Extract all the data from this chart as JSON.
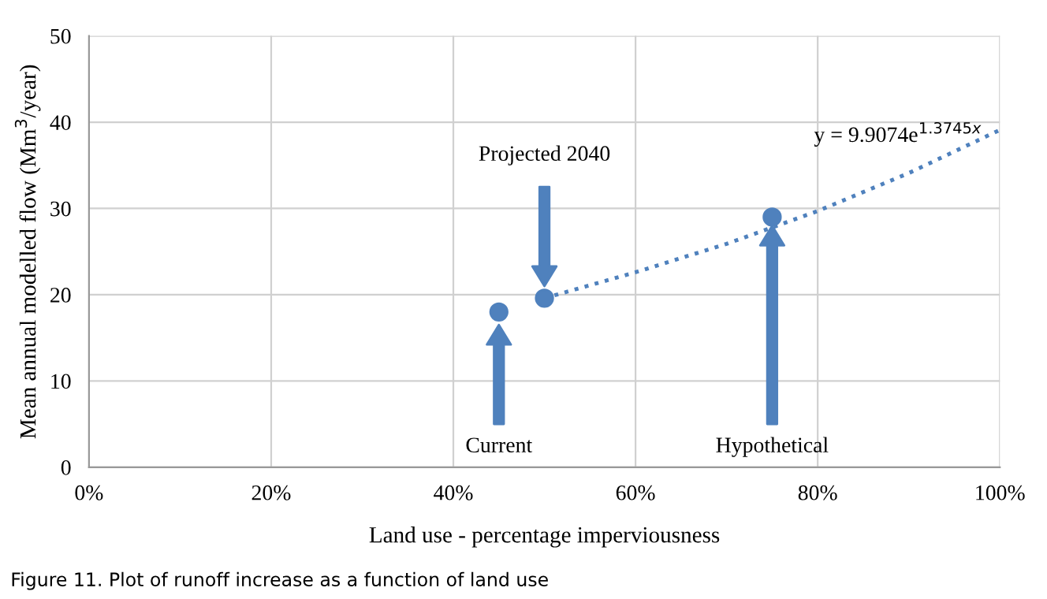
{
  "chart_data": {
    "type": "scatter",
    "xlabel": "Land use - percentage imperviousness",
    "ylabel": "Mean annual modelled flow (Mm$^{3}$/year)",
    "xlim": [
      0,
      1
    ],
    "xticks": [
      {
        "value": 0,
        "label": "0%"
      },
      {
        "value": 0.2,
        "label": "20%"
      },
      {
        "value": 0.4,
        "label": "40%"
      },
      {
        "value": 0.6,
        "label": "60%"
      },
      {
        "value": 0.8,
        "label": "80%"
      },
      {
        "value": 1,
        "label": "100%"
      }
    ],
    "ylim": [
      0,
      50
    ],
    "yticks": [
      0,
      10,
      20,
      30,
      40,
      50
    ],
    "grid": true,
    "series": [
      {
        "color": "#4f81bd",
        "marker": "circle",
        "x": [
          0.45,
          0.5,
          0.75
        ],
        "values": [
          18,
          19.6,
          29
        ]
      },
      {
        "type": "line",
        "color": "#4f81bd",
        "line_style": "dotted",
        "x": [
          0.5,
          0.6,
          0.7,
          0.8,
          0.9,
          1.0
        ],
        "values": [
          19.6,
          22.6,
          25.9,
          29.7,
          34.1,
          39.1
        ]
      }
    ],
    "annotations": [
      "Current",
      "Projected 2040",
      "Hypothetical",
      {
        "text": "y = 9.9074e$^{1.3745x}$",
        "x": 0.9,
        "y": 34.1
      },
      "Figure 11. Plot of runoff increase as a function of land use"
    ]
  }
}
